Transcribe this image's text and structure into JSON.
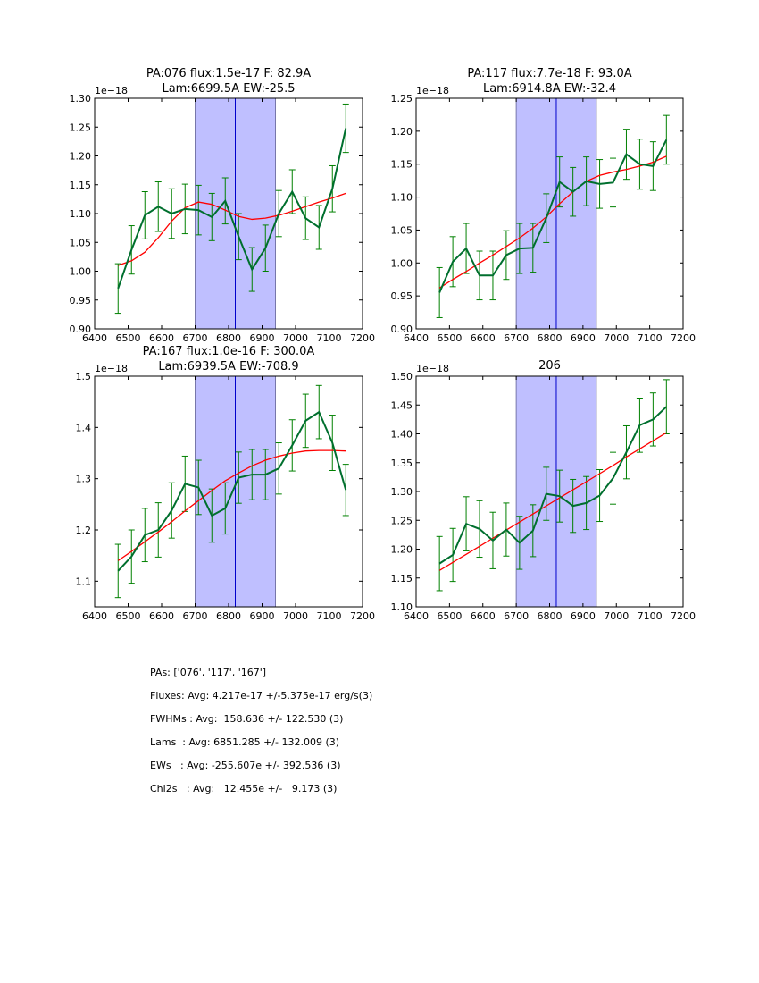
{
  "colors": {
    "data": "#006f2e",
    "errorbar": "#008000",
    "model": "#ff0000",
    "shade": "#bfbfff",
    "line_center": "#0000cc"
  },
  "chart_data": [
    {
      "type": "line",
      "title": [
        "PA:076 flux:1.5e-17 F: 82.9A",
        "Lam:6699.5A EW:-25.5"
      ],
      "offset_label": "1e−18",
      "xlim": [
        6400,
        7200
      ],
      "ylim": [
        0.9,
        1.3
      ],
      "xticks": [
        6400,
        6500,
        6600,
        6700,
        6800,
        6900,
        7000,
        7100,
        7200
      ],
      "yticks": [
        "0.90",
        "0.95",
        "1.00",
        "1.05",
        "1.10",
        "1.15",
        "1.20",
        "1.25",
        "1.30"
      ],
      "shade": [
        6700,
        6940
      ],
      "vline": 6820,
      "x": [
        6470,
        6510,
        6550,
        6590,
        6630,
        6670,
        6710,
        6750,
        6790,
        6830,
        6870,
        6910,
        6950,
        6990,
        7030,
        7070,
        7110,
        7150
      ],
      "series": [
        {
          "name": "data",
          "values": [
            0.97,
            1.037,
            1.097,
            1.112,
            1.1,
            1.108,
            1.106,
            1.094,
            1.122,
            1.06,
            1.003,
            1.04,
            1.1,
            1.138,
            1.092,
            1.076,
            1.143,
            1.248
          ],
          "errors": [
            0.043,
            0.042,
            0.041,
            0.043,
            0.043,
            0.043,
            0.043,
            0.041,
            0.04,
            0.04,
            0.038,
            0.04,
            0.04,
            0.038,
            0.037,
            0.038,
            0.04,
            0.042
          ]
        },
        {
          "name": "model",
          "values": [
            1.01,
            1.018,
            1.033,
            1.058,
            1.087,
            1.11,
            1.12,
            1.116,
            1.106,
            1.095,
            1.09,
            1.092,
            1.097,
            1.104,
            1.112,
            1.12,
            1.127,
            1.135
          ]
        }
      ]
    },
    {
      "type": "line",
      "title": [
        "PA:117 flux:7.7e-18 F: 93.0A",
        "Lam:6914.8A EW:-32.4"
      ],
      "offset_label": "1e−18",
      "xlim": [
        6400,
        7200
      ],
      "ylim": [
        0.9,
        1.25
      ],
      "xticks": [
        6400,
        6500,
        6600,
        6700,
        6800,
        6900,
        7000,
        7100,
        7200
      ],
      "yticks": [
        "0.90",
        "0.95",
        "1.00",
        "1.05",
        "1.10",
        "1.15",
        "1.20",
        "1.25"
      ],
      "shade": [
        6700,
        6940
      ],
      "vline": 6820,
      "x": [
        6470,
        6510,
        6550,
        6590,
        6630,
        6670,
        6710,
        6750,
        6790,
        6830,
        6870,
        6910,
        6950,
        6990,
        7030,
        7070,
        7110,
        7150
      ],
      "series": [
        {
          "name": "data",
          "values": [
            0.955,
            1.002,
            1.022,
            0.981,
            0.981,
            1.012,
            1.022,
            1.023,
            1.068,
            1.123,
            1.108,
            1.124,
            1.12,
            1.122,
            1.165,
            1.15,
            1.147,
            1.187
          ],
          "errors": [
            0.038,
            0.038,
            0.038,
            0.037,
            0.037,
            0.037,
            0.038,
            0.037,
            0.037,
            0.038,
            0.037,
            0.037,
            0.037,
            0.037,
            0.038,
            0.038,
            0.037,
            0.037
          ]
        },
        {
          "name": "model",
          "values": [
            0.962,
            0.975,
            0.987,
            1.0,
            1.012,
            1.025,
            1.038,
            1.053,
            1.07,
            1.09,
            1.108,
            1.124,
            1.133,
            1.138,
            1.142,
            1.147,
            1.153,
            1.162
          ]
        }
      ]
    },
    {
      "type": "line",
      "title": [
        "PA:167 flux:1.0e-16 F: 300.0A",
        "Lam:6939.5A EW:-708.9"
      ],
      "offset_label": "1e−18",
      "xlim": [
        6400,
        7200
      ],
      "ylim": [
        1.05,
        1.5
      ],
      "xticks": [
        6400,
        6500,
        6600,
        6700,
        6800,
        6900,
        7000,
        7100,
        7200
      ],
      "yticks": [
        "1.1",
        "1.2",
        "1.3",
        "1.4",
        "1.5"
      ],
      "ytick_values": [
        1.1,
        1.2,
        1.3,
        1.4,
        1.5
      ],
      "shade": [
        6700,
        6940
      ],
      "vline": 6820,
      "x": [
        6470,
        6510,
        6550,
        6590,
        6630,
        6670,
        6710,
        6750,
        6790,
        6830,
        6870,
        6910,
        6950,
        6990,
        7030,
        7070,
        7110,
        7150
      ],
      "series": [
        {
          "name": "data",
          "values": [
            1.12,
            1.148,
            1.19,
            1.2,
            1.238,
            1.29,
            1.283,
            1.228,
            1.242,
            1.302,
            1.308,
            1.308,
            1.32,
            1.365,
            1.413,
            1.43,
            1.37,
            1.278
          ],
          "errors": [
            0.052,
            0.052,
            0.052,
            0.053,
            0.054,
            0.054,
            0.053,
            0.052,
            0.05,
            0.05,
            0.049,
            0.049,
            0.05,
            0.05,
            0.052,
            0.052,
            0.054,
            0.05
          ]
        },
        {
          "name": "model",
          "values": [
            1.14,
            1.158,
            1.177,
            1.196,
            1.216,
            1.237,
            1.257,
            1.277,
            1.296,
            1.311,
            1.325,
            1.336,
            1.344,
            1.35,
            1.354,
            1.355,
            1.355,
            1.354
          ]
        }
      ]
    },
    {
      "type": "line",
      "title": [
        "206"
      ],
      "offset_label": "1e−18",
      "xlim": [
        6400,
        7200
      ],
      "ylim": [
        1.1,
        1.5
      ],
      "xticks": [
        6400,
        6500,
        6600,
        6700,
        6800,
        6900,
        7000,
        7100,
        7200
      ],
      "yticks": [
        "1.10",
        "1.15",
        "1.20",
        "1.25",
        "1.30",
        "1.35",
        "1.40",
        "1.45",
        "1.50"
      ],
      "shade": [
        6700,
        6940
      ],
      "vline": 6820,
      "x": [
        6470,
        6510,
        6550,
        6590,
        6630,
        6670,
        6710,
        6750,
        6790,
        6830,
        6870,
        6910,
        6950,
        6990,
        7030,
        7070,
        7110,
        7150
      ],
      "series": [
        {
          "name": "data",
          "values": [
            1.175,
            1.19,
            1.244,
            1.235,
            1.215,
            1.234,
            1.211,
            1.232,
            1.296,
            1.292,
            1.275,
            1.28,
            1.293,
            1.323,
            1.368,
            1.415,
            1.425,
            1.447
          ],
          "errors": [
            0.047,
            0.046,
            0.047,
            0.049,
            0.049,
            0.046,
            0.046,
            0.045,
            0.046,
            0.045,
            0.046,
            0.046,
            0.045,
            0.045,
            0.046,
            0.047,
            0.046,
            0.047
          ]
        },
        {
          "name": "model",
          "values": [
            1.163,
            1.177,
            1.191,
            1.205,
            1.219,
            1.233,
            1.247,
            1.261,
            1.275,
            1.289,
            1.303,
            1.317,
            1.331,
            1.345,
            1.36,
            1.374,
            1.388,
            1.402
          ]
        }
      ]
    }
  ],
  "stats": [
    "PAs: ['076', '117', '167']",
    "Fluxes: Avg: 4.217e-17 +/-5.375e-17 erg/s(3)",
    "FWHMs : Avg:  158.636 +/- 122.530 (3)",
    "Lams  : Avg: 6851.285 +/- 132.009 (3)",
    "EWs   : Avg: -255.607e +/- 392.536 (3)",
    "Chi2s   : Avg:   12.455e +/-   9.173 (3)"
  ]
}
